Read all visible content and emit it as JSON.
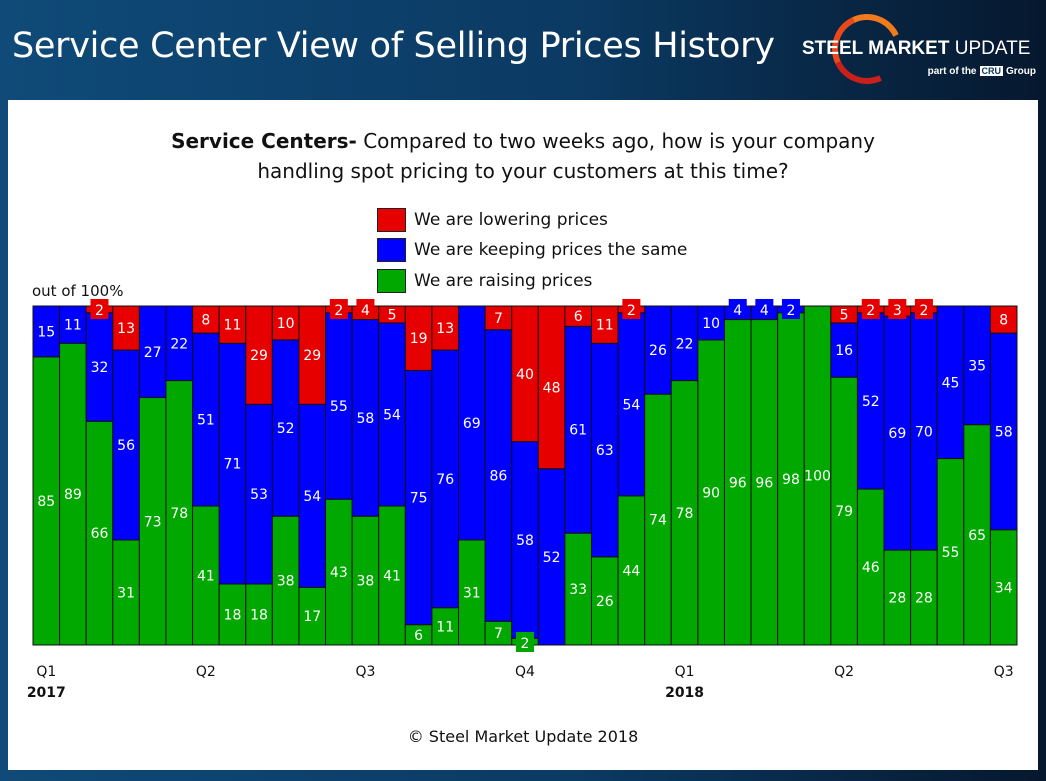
{
  "header": {
    "title": "Service Center View of Selling Prices History",
    "logo_text_bold": "STEEL MARKET",
    "logo_text": "UPDATE",
    "logo_sub_prefix": "part of the",
    "logo_sub_badge": "CRU",
    "logo_sub_suffix": "Group"
  },
  "question": {
    "bold": "Service Centers-",
    "line1": " Compared to two weeks ago, how is your company",
    "line2": "handling spot pricing to your customers at this time?"
  },
  "footer": {
    "copyright": "© Steel Market Update 2018"
  },
  "chart_data": {
    "type": "bar",
    "stacked": true,
    "ylabel": "out of 100%",
    "ylim": [
      0,
      100
    ],
    "grid": false,
    "legend_position": "top-center",
    "x_tick_labels": [
      {
        "index": 0,
        "label": "Q1",
        "year": "2017"
      },
      {
        "index": 6,
        "label": "Q2"
      },
      {
        "index": 12,
        "label": "Q3"
      },
      {
        "index": 18,
        "label": "Q4"
      },
      {
        "index": 24,
        "label": "Q1",
        "year": "2018"
      },
      {
        "index": 30,
        "label": "Q2"
      },
      {
        "index": 36,
        "label": "Q3"
      }
    ],
    "series": [
      {
        "name": "We are raising prices",
        "color": "#00a800",
        "values": [
          85,
          89,
          66,
          31,
          73,
          78,
          41,
          18,
          18,
          38,
          17,
          43,
          38,
          41,
          6,
          11,
          31,
          7,
          2,
          0,
          33,
          26,
          44,
          74,
          78,
          90,
          96,
          96,
          98,
          100,
          79,
          46,
          28,
          28,
          55,
          65,
          34
        ]
      },
      {
        "name": "We are keeping prices the same",
        "color": "#0000ff",
        "values": [
          15,
          11,
          32,
          56,
          27,
          22,
          51,
          71,
          53,
          52,
          54,
          55,
          58,
          54,
          75,
          76,
          69,
          86,
          58,
          52,
          61,
          63,
          54,
          26,
          22,
          10,
          4,
          4,
          2,
          0,
          16,
          52,
          69,
          70,
          45,
          35,
          58
        ]
      },
      {
        "name": "We are lowering prices",
        "color": "#e60000",
        "values": [
          0,
          0,
          2,
          13,
          0,
          0,
          8,
          11,
          29,
          10,
          29,
          2,
          4,
          5,
          19,
          13,
          0,
          7,
          40,
          48,
          6,
          11,
          2,
          0,
          0,
          0,
          0,
          0,
          0,
          0,
          5,
          2,
          3,
          2,
          0,
          0,
          8
        ]
      }
    ],
    "legend_order": [
      2,
      1,
      0
    ]
  }
}
